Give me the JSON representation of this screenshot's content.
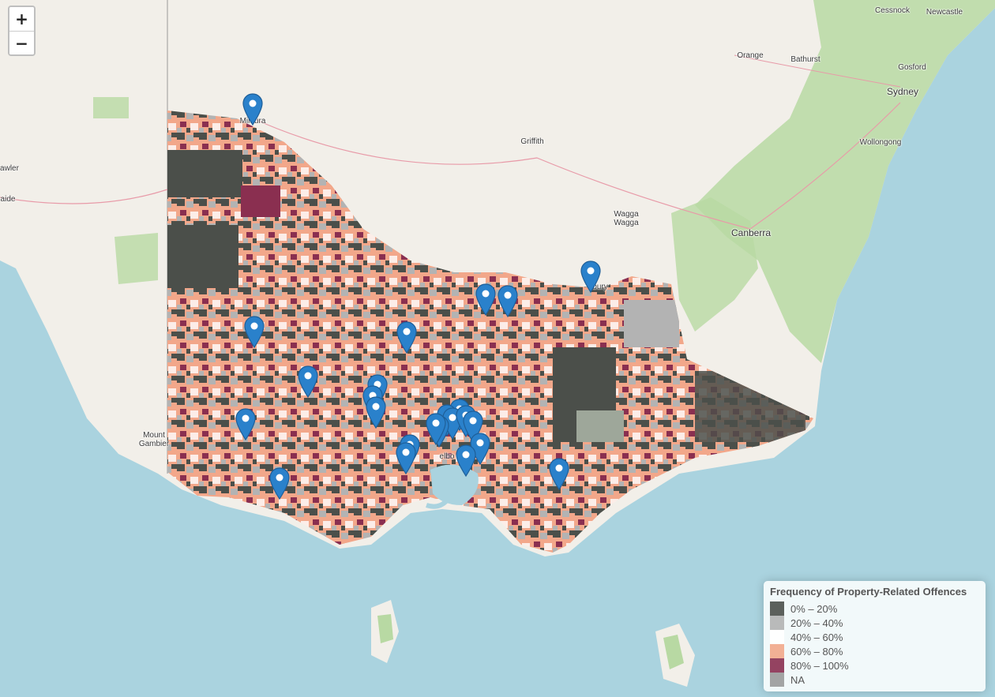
{
  "map": {
    "zoom": {
      "in_label": "+",
      "out_label": "−"
    },
    "places": {
      "cessnock": "Cessnock",
      "newcastle": "Newcastle",
      "orange": "Orange",
      "bathurst": "Bathurst",
      "gosford": "Gosford",
      "sydney": "Sydney",
      "wollongong": "Wollongong",
      "griffith": "Griffith",
      "mildura": "Mildura",
      "hawler": "awler",
      "adelaide": "aide",
      "wagga": "Wagga\nWagga",
      "canberra": "Canberra",
      "albury": "bury",
      "mount_gambier": "Mount\nGambier",
      "melbourne": "elbo"
    },
    "legend": {
      "title": "Frequency of Property-Related Offences",
      "items": [
        {
          "label": "0% – 20%",
          "color": "#4b4f4a"
        },
        {
          "label": "20% – 40%",
          "color": "#b3b3b3"
        },
        {
          "label": "40% – 60%",
          "color": "#ffffff"
        },
        {
          "label": "60% – 80%",
          "color": "#f2a78a"
        },
        {
          "label": "80% – 100%",
          "color": "#8a2f50"
        },
        {
          "label": "NA",
          "color": "#9a9a9a"
        }
      ]
    },
    "colors": {
      "water": "#aad3df",
      "land": "#f2efe9",
      "forest": "#b8d9a3",
      "marker": "#2a81cb"
    }
  }
}
